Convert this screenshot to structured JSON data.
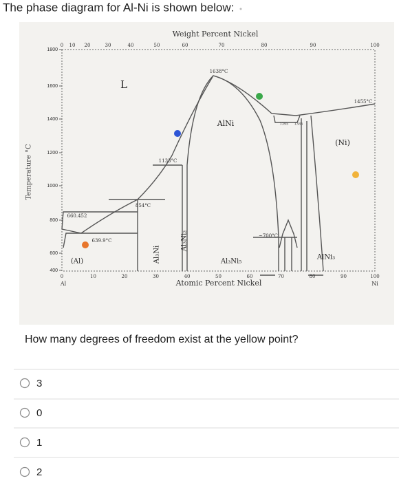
{
  "header": {
    "title": "The phase diagram for Al-Ni is shown below:"
  },
  "diagram": {
    "top_axis_label": "Weight Percent Nickel",
    "top_ticks": [
      "0",
      "10",
      "20",
      "30",
      "40",
      "50",
      "60",
      "70",
      "80",
      "90",
      "100"
    ],
    "y_axis_label": "Temperature °C",
    "y_ticks": [
      "1800",
      "1600",
      "1400",
      "1200",
      "1000",
      "800",
      "600",
      "400"
    ],
    "bottom_ticks": [
      "0",
      "10",
      "20",
      "30",
      "40",
      "50",
      "60",
      "70",
      "80",
      "90",
      "100"
    ],
    "bottom_axis_label": "Atomic Percent Nickel",
    "left_element": "Al",
    "right_element": "Ni",
    "annotations": [
      "1638°C",
      "1133°C",
      "854°C",
      "660.452",
      "639.9°C",
      "~700°C",
      "1455°C",
      "1395",
      "1385"
    ],
    "regions": [
      "L",
      "AlNi",
      "(Ni)",
      "(Al)",
      "Al₃Ni",
      "Al₃Ni₂",
      "Al₃Ni₅",
      "AlNi₃"
    ]
  },
  "question": "How many degrees of freedom exist at the yellow point?",
  "options": [
    "3",
    "0",
    "1",
    "2"
  ]
}
